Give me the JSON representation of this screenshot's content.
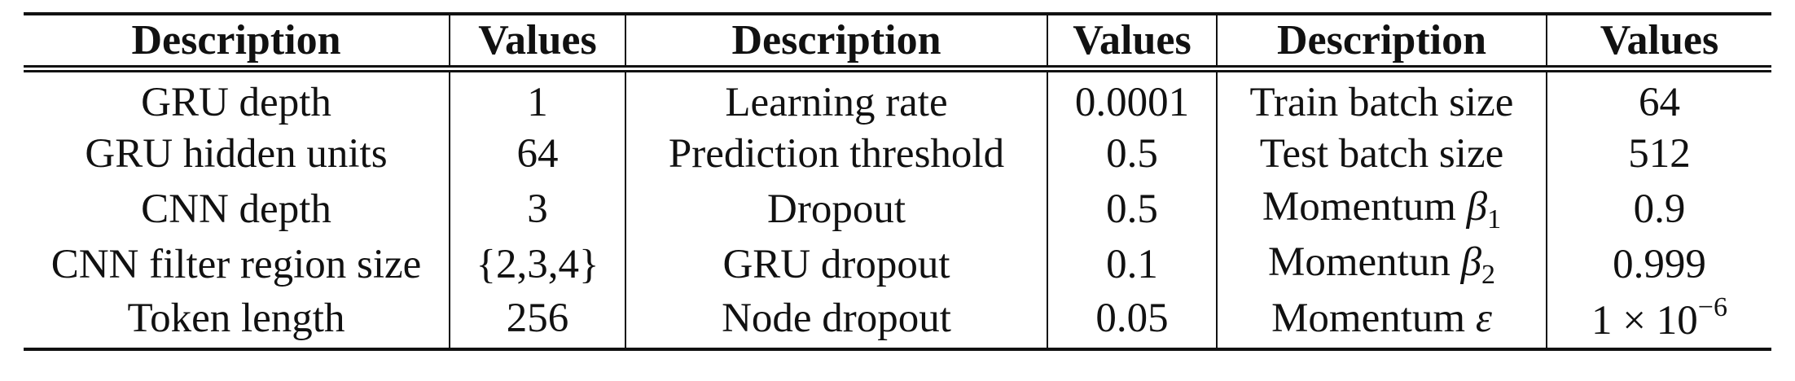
{
  "table": {
    "headers": [
      "Description",
      "Values",
      "Description",
      "Values",
      "Description",
      "Values"
    ],
    "rows": [
      [
        "GRU depth",
        "1",
        "Learning rate",
        "0.0001",
        "Train batch size",
        "64"
      ],
      [
        "GRU hidden units",
        "64",
        "Prediction threshold",
        "0.5",
        "Test batch size",
        "512"
      ],
      [
        "CNN depth",
        "3",
        "Dropout",
        "0.5",
        "Momentum",
        "0.9"
      ],
      [
        "CNN filter region size",
        "{2,3,4}",
        "GRU dropout",
        "0.1",
        "Momentun",
        "0.999"
      ],
      [
        "Token length",
        "256",
        "Node dropout",
        "0.05",
        "Momentum",
        "1 × 10"
      ]
    ],
    "math": {
      "beta_symbol": "β",
      "beta1_sub": "1",
      "beta2_sub": "2",
      "epsilon_symbol": "ε",
      "exponent": "−6"
    }
  }
}
